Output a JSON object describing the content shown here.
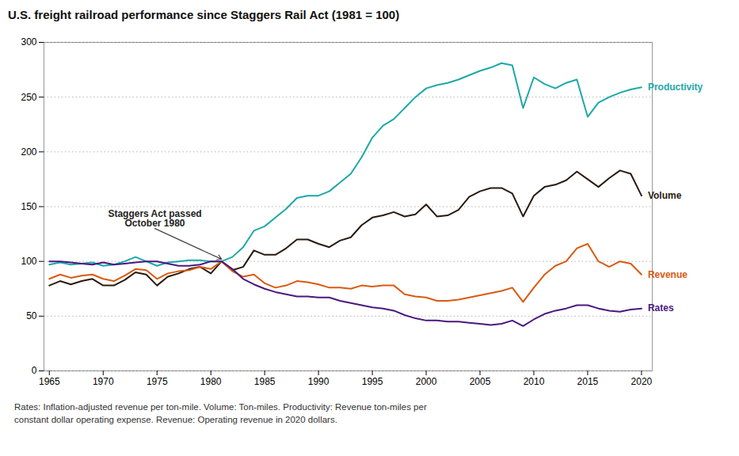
{
  "chart_data": {
    "type": "line",
    "title": "U.S. freight railroad performance since Staggers Rail Act (1981 = 100)",
    "caption": "Rates: Inflation-adjusted revenue per ton-mile. Volume: Ton-miles. Productivity: Revenue ton-miles per\nconstant dollar operating expense. Revenue: Operating revenue in 2020 dollars.",
    "annotations": [
      {
        "text": "Staggers Act passed\nOctober 1980",
        "x": 1974.8,
        "y": 130,
        "arrow_x": 1981,
        "arrow_y": 102
      }
    ],
    "x": [
      1965,
      1966,
      1967,
      1968,
      1969,
      1970,
      1971,
      1972,
      1973,
      1974,
      1975,
      1976,
      1977,
      1978,
      1979,
      1980,
      1981,
      1982,
      1983,
      1984,
      1985,
      1986,
      1987,
      1988,
      1989,
      1990,
      1991,
      1992,
      1993,
      1994,
      1995,
      1996,
      1997,
      1998,
      1999,
      2000,
      2001,
      2002,
      2003,
      2004,
      2005,
      2006,
      2007,
      2008,
      2009,
      2010,
      2011,
      2012,
      2013,
      2014,
      2015,
      2016,
      2017,
      2018,
      2019,
      2020
    ],
    "series": [
      {
        "name": "Productivity",
        "color": "#1da8a8",
        "values": [
          97,
          99,
          97,
          98,
          99,
          96,
          97,
          100,
          104,
          100,
          96,
          99,
          100,
          101,
          101,
          100,
          100,
          104,
          113,
          128,
          132,
          140,
          148,
          158,
          160,
          160,
          164,
          172,
          180,
          195,
          213,
          224,
          230,
          240,
          250,
          258,
          261,
          263,
          266,
          270,
          274,
          277,
          281,
          279,
          240,
          268,
          262,
          258,
          263,
          266,
          232,
          245,
          250,
          254,
          257,
          259
        ]
      },
      {
        "name": "Volume",
        "color": "#2a1a0e",
        "values": [
          78,
          82,
          79,
          82,
          84,
          78,
          78,
          83,
          90,
          88,
          78,
          86,
          89,
          93,
          95,
          89,
          100,
          92,
          95,
          110,
          106,
          106,
          112,
          120,
          120,
          116,
          113,
          119,
          122,
          133,
          140,
          142,
          145,
          141,
          143,
          152,
          141,
          142,
          147,
          159,
          164,
          167,
          167,
          162,
          141,
          160,
          168,
          170,
          174,
          182,
          175,
          168,
          176,
          183,
          180,
          160
        ]
      },
      {
        "name": "Revenue",
        "color": "#d95a10",
        "values": [
          84,
          88,
          85,
          87,
          88,
          84,
          82,
          87,
          93,
          92,
          84,
          89,
          91,
          92,
          95,
          93,
          100,
          91,
          86,
          88,
          80,
          76,
          78,
          82,
          81,
          79,
          76,
          76,
          75,
          78,
          77,
          78,
          78,
          70,
          68,
          67,
          64,
          64,
          65,
          67,
          69,
          71,
          73,
          76,
          63,
          76,
          88,
          96,
          100,
          112,
          116,
          100,
          95,
          100,
          98,
          88
        ]
      },
      {
        "name": "Rates",
        "color": "#4a1880",
        "values": [
          100,
          100,
          99,
          98,
          97,
          99,
          97,
          98,
          99,
          100,
          100,
          98,
          96,
          96,
          97,
          100,
          100,
          93,
          84,
          79,
          75,
          72,
          70,
          68,
          68,
          67,
          67,
          64,
          62,
          60,
          58,
          57,
          55,
          51,
          48,
          46,
          46,
          45,
          45,
          44,
          43,
          42,
          43,
          46,
          41,
          47,
          52,
          55,
          57,
          60,
          60,
          57,
          55,
          54,
          56,
          57
        ]
      }
    ],
    "xlim": [
      1964.5,
      2021
    ],
    "xticks": [
      1965,
      1970,
      1975,
      1980,
      1985,
      1990,
      1995,
      2000,
      2005,
      2010,
      2015,
      2020
    ],
    "ylim": [
      0,
      300
    ],
    "yticks": [
      0,
      50,
      100,
      150,
      200,
      250,
      300
    ],
    "grid": true
  }
}
